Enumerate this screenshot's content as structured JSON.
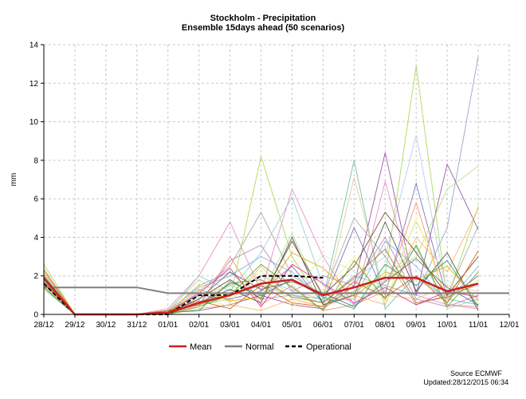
{
  "chart_data": {
    "type": "line",
    "title": "Stockholm - Precipitation",
    "subtitle": "Ensemble 15days ahead (50 scenarios)",
    "ylabel": "mm",
    "xlabel": "",
    "ylim": [
      0,
      14
    ],
    "yticks": [
      0,
      2,
      4,
      6,
      8,
      10,
      12,
      14
    ],
    "categories": [
      "28/12",
      "29/12",
      "30/12",
      "31/12",
      "01/01",
      "02/01",
      "03/01",
      "04/01",
      "05/01",
      "06/01",
      "07/01",
      "08/01",
      "09/01",
      "10/01",
      "11/01",
      "12/01"
    ],
    "grid": true,
    "legend_position": "bottom",
    "series": [
      {
        "name": "Mean",
        "color": "#cc1f1f",
        "style": "solid",
        "values": [
          1.9,
          0.0,
          0.0,
          0.0,
          0.1,
          0.6,
          1.0,
          1.6,
          1.8,
          1.0,
          1.4,
          1.9,
          1.9,
          1.2,
          1.6,
          null
        ]
      },
      {
        "name": "Normal",
        "color": "#808080",
        "style": "solid",
        "values": [
          1.4,
          1.4,
          1.4,
          1.4,
          1.1,
          1.1,
          1.1,
          1.1,
          1.1,
          1.1,
          1.1,
          1.1,
          1.1,
          1.1,
          1.1,
          1.1
        ]
      },
      {
        "name": "Operational",
        "color": "#000000",
        "style": "dashed",
        "values": [
          1.6,
          0.0,
          0.0,
          0.0,
          0.0,
          1.0,
          1.0,
          2.0,
          2.0,
          1.9,
          null,
          null,
          null,
          null,
          null,
          null
        ]
      }
    ],
    "ensemble_members": [
      {
        "color": "#a6d854",
        "values": [
          2.6,
          0,
          0,
          0,
          0.1,
          0.5,
          0.8,
          8.2,
          3.0,
          0.5,
          1.2,
          2.0,
          12.9,
          0.8,
          5.6,
          null
        ]
      },
      {
        "color": "#b3cde3",
        "values": [
          1.8,
          0,
          0,
          0,
          0.2,
          1.0,
          1.5,
          2.0,
          1.2,
          0.8,
          1.8,
          3.0,
          9.3,
          1.0,
          1.5,
          null
        ]
      },
      {
        "color": "#8da0cb",
        "values": [
          1.5,
          0,
          0,
          0,
          0.1,
          1.5,
          2.2,
          0.8,
          1.0,
          0.6,
          2.0,
          1.5,
          1.0,
          4.5,
          13.4,
          null
        ]
      },
      {
        "color": "#e78ac3",
        "values": [
          2.0,
          0,
          0,
          0,
          0.3,
          2.0,
          4.8,
          1.2,
          6.5,
          3.0,
          0.5,
          6.9,
          1.0,
          0.5,
          0.4,
          null
        ]
      },
      {
        "color": "#66c2a5",
        "values": [
          1.7,
          0,
          0,
          0,
          0.1,
          0.5,
          1.0,
          1.5,
          1.0,
          0.8,
          8.0,
          0.3,
          2.0,
          0.8,
          0.5,
          null
        ]
      },
      {
        "color": "#984ea3",
        "values": [
          1.6,
          0,
          0,
          0,
          0.1,
          0.2,
          0.5,
          1.0,
          0.5,
          0.3,
          1.5,
          8.4,
          1.0,
          7.8,
          4.4,
          null
        ]
      },
      {
        "color": "#7570b3",
        "values": [
          1.9,
          0,
          0,
          0,
          0.2,
          1.0,
          0.8,
          1.2,
          2.5,
          0.6,
          4.5,
          1.0,
          6.8,
          0.8,
          2.0,
          null
        ]
      },
      {
        "color": "#b2df8a",
        "values": [
          2.2,
          0,
          0,
          0,
          0.1,
          0.6,
          1.5,
          1.0,
          4.2,
          0.8,
          1.0,
          2.0,
          3.0,
          6.5,
          7.7,
          null
        ]
      },
      {
        "color": "#a6a6a6",
        "values": [
          1.5,
          0,
          0,
          0,
          0.0,
          1.2,
          2.5,
          5.3,
          2.0,
          1.0,
          5.0,
          3.0,
          0.5,
          1.0,
          4.6,
          null
        ]
      },
      {
        "color": "#fc8d62",
        "values": [
          1.8,
          0,
          0,
          0,
          0.1,
          0.4,
          3.0,
          0.5,
          1.5,
          0.2,
          0.5,
          1.2,
          5.8,
          0.5,
          0.3,
          null
        ]
      },
      {
        "color": "#e5c494",
        "values": [
          2.4,
          0,
          0,
          0,
          0.2,
          1.8,
          0.6,
          2.5,
          0.8,
          0.4,
          7.1,
          1.0,
          0.8,
          1.5,
          1.2,
          null
        ]
      },
      {
        "color": "#8dd3c7",
        "values": [
          1.3,
          0,
          0,
          0,
          0.1,
          2.0,
          1.2,
          3.2,
          6.1,
          1.5,
          0.5,
          1.8,
          3.5,
          0.3,
          0.8,
          null
        ]
      },
      {
        "color": "#fdb462",
        "values": [
          2.0,
          0,
          0,
          0,
          0.0,
          0.3,
          0.5,
          0.2,
          0.8,
          0.4,
          1.0,
          0.5,
          4.0,
          2.2,
          5.5,
          null
        ]
      },
      {
        "color": "#6b4226",
        "values": [
          1.4,
          0,
          0,
          0,
          0.1,
          0.8,
          1.8,
          0.8,
          3.8,
          1.0,
          2.5,
          5.3,
          3.2,
          1.0,
          3.0,
          null
        ]
      },
      {
        "color": "#bc80bd",
        "values": [
          1.7,
          0,
          0,
          0,
          0.1,
          0.5,
          2.8,
          3.6,
          1.2,
          2.0,
          1.5,
          4.0,
          0.8,
          0.4,
          1.0,
          null
        ]
      },
      {
        "color": "#80b1d3",
        "values": [
          2.1,
          0,
          0,
          0,
          0.2,
          1.4,
          2.0,
          3.0,
          2.2,
          0.7,
          0.8,
          3.8,
          2.5,
          0.6,
          2.5,
          null
        ]
      },
      {
        "color": "#ccebc5",
        "values": [
          1.6,
          0,
          0,
          0,
          0.1,
          0.9,
          0.4,
          1.8,
          1.0,
          3.1,
          2.2,
          1.2,
          4.8,
          1.8,
          0.6,
          null
        ]
      },
      {
        "color": "#4d4d4d",
        "values": [
          1.9,
          0,
          0,
          0,
          0.0,
          0.6,
          1.3,
          0.6,
          4.0,
          0.5,
          1.0,
          4.8,
          1.2,
          3.2,
          0.2,
          null
        ]
      },
      {
        "color": "#ffed6f",
        "values": [
          1.5,
          0,
          0,
          0,
          0.1,
          1.6,
          0.9,
          2.3,
          0.4,
          1.2,
          3.0,
          0.6,
          5.0,
          0.8,
          1.8,
          null
        ]
      },
      {
        "color": "#1b9e77",
        "values": [
          1.8,
          0,
          0,
          0,
          0.1,
          0.2,
          1.7,
          1.0,
          1.8,
          0.9,
          0.3,
          2.6,
          1.5,
          2.8,
          0.4,
          null
        ]
      },
      {
        "color": "#d95f02",
        "values": [
          2.3,
          0,
          0,
          0,
          0.2,
          0.7,
          0.3,
          1.5,
          0.6,
          0.4,
          1.7,
          0.9,
          2.0,
          0.6,
          3.3,
          null
        ]
      },
      {
        "color": "#e7298a",
        "values": [
          1.6,
          0,
          0,
          0,
          0.1,
          1.1,
          2.4,
          0.4,
          2.6,
          1.6,
          0.6,
          1.4,
          0.5,
          1.2,
          0.9,
          null
        ]
      },
      {
        "color": "#66a61e",
        "values": [
          1.4,
          0,
          0,
          0,
          0.0,
          0.4,
          1.0,
          2.6,
          1.4,
          0.2,
          2.8,
          0.8,
          3.6,
          0.4,
          2.2,
          null
        ]
      },
      {
        "color": "#e6ab02",
        "values": [
          2.0,
          0,
          0,
          0,
          0.1,
          1.3,
          0.7,
          0.9,
          3.2,
          2.4,
          0.9,
          2.2,
          1.8,
          2.5,
          0.7,
          null
        ]
      },
      {
        "color": "#a6761d",
        "values": [
          1.7,
          0,
          0,
          0,
          0.2,
          0.5,
          1.6,
          1.8,
          0.9,
          0.6,
          1.9,
          3.4,
          0.6,
          0.9,
          1.6,
          null
        ]
      },
      {
        "color": "#666666",
        "values": [
          1.9,
          0,
          0,
          0,
          0.1,
          0.8,
          2.2,
          1.3,
          1.7,
          1.1,
          0.4,
          1.7,
          2.9,
          1.4,
          0.5,
          null
        ]
      }
    ],
    "source_label": "Source ECMWF",
    "updated_label": "Updated:28/12/2015 06:34"
  }
}
